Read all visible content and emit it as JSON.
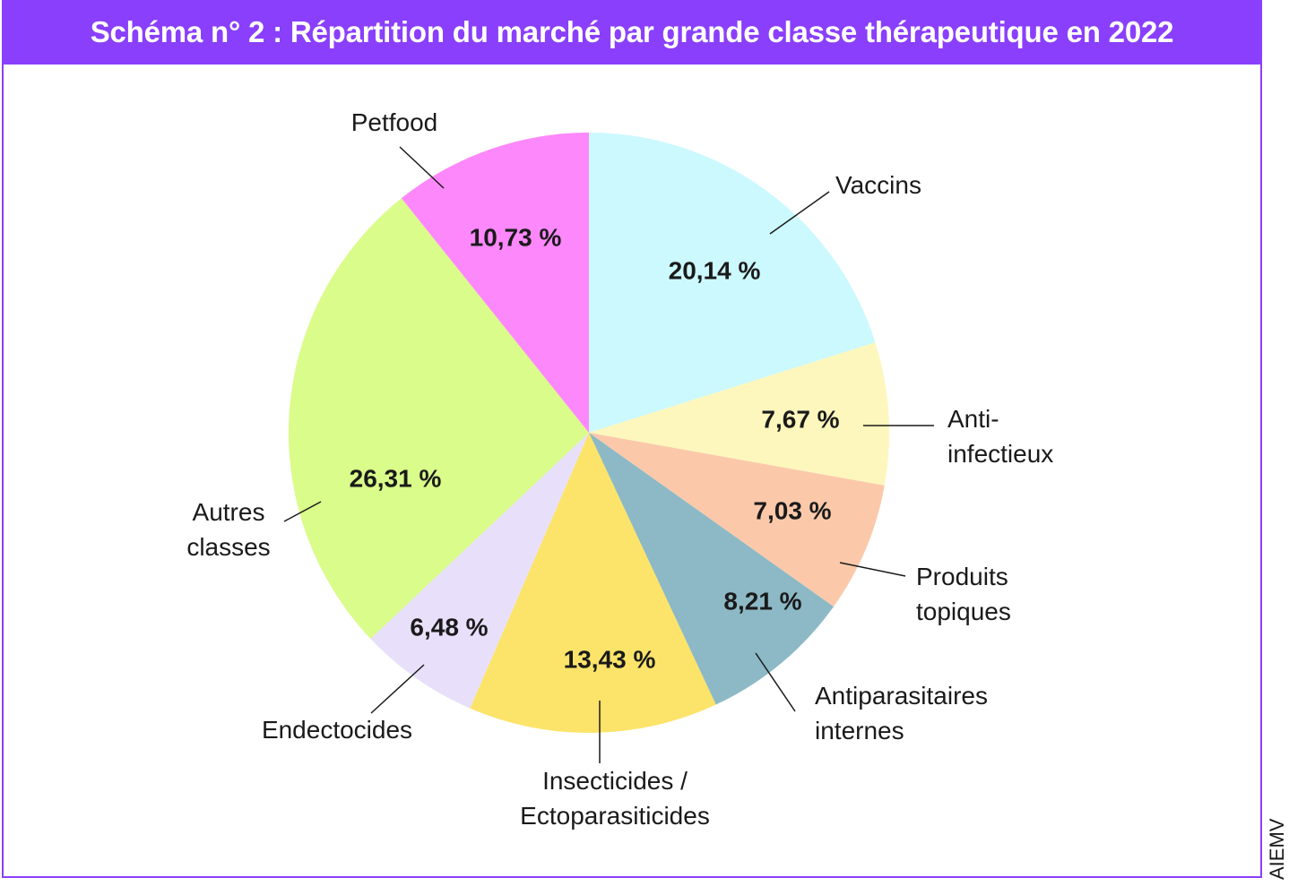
{
  "title": "Schéma n° 2 : Répartition du marché par grande classe thérapeutique en 2022",
  "source": "AIEMV",
  "colors": {
    "accent": "#8a3ffc",
    "stroke": "#555555",
    "text": "#1a1a1a"
  },
  "chart_data": {
    "type": "pie",
    "title": "Schéma n° 2 : Répartition du marché par grande classe thérapeutique en 2022",
    "slices": [
      {
        "label": [
          "Vaccins"
        ],
        "value": 20.14,
        "value_label": "20,14 %",
        "color": "#ccf9fd"
      },
      {
        "label": [
          "Anti-",
          "infectieux"
        ],
        "value": 7.67,
        "value_label": "7,67 %",
        "color": "#fdf7bd"
      },
      {
        "label": [
          "Produits",
          "topiques"
        ],
        "value": 7.03,
        "value_label": "7,03 %",
        "color": "#fbc9aa"
      },
      {
        "label": [
          "Antiparasitaires",
          "internes"
        ],
        "value": 8.21,
        "value_label": "8,21 %",
        "color": "#8cb9c5"
      },
      {
        "label": [
          "Insecticides /",
          "Ectoparasiticides"
        ],
        "value": 13.43,
        "value_label": "13,43 %",
        "color": "#fce46a"
      },
      {
        "label": [
          "Endectocides"
        ],
        "value": 6.48,
        "value_label": "6,48 %",
        "color": "#e8e0fb"
      },
      {
        "label": [
          "Autres",
          "classes"
        ],
        "value": 26.31,
        "value_label": "26,31 %",
        "color": "#dafc8a"
      },
      {
        "label": [
          "Petfood"
        ],
        "value": 10.73,
        "value_label": "10,73 %",
        "color": "#fd88fb"
      }
    ]
  }
}
